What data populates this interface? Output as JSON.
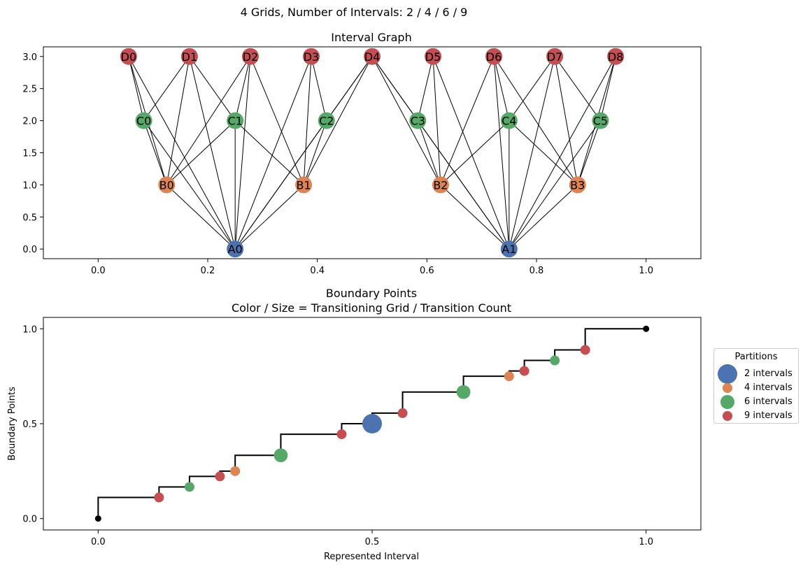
{
  "suptitle": "4 Grids, Number of Intervals: 2 / 4 / 6 / 9",
  "colors": {
    "blue": "#4c72b0",
    "orange": "#dd8452",
    "green": "#55a868",
    "red": "#c44e52",
    "edge": "#000000",
    "black": "#000000"
  },
  "chart_data": [
    {
      "type": "network",
      "title": "Interval Graph",
      "xlim": [
        -0.1,
        1.1
      ],
      "ylim": [
        -0.15,
        3.15
      ],
      "xticks": [
        0.0,
        0.2,
        0.4,
        0.6,
        0.8,
        1.0
      ],
      "xtick_labels": [
        "0.0",
        "0.2",
        "0.4",
        "0.6",
        "0.8",
        "1.0"
      ],
      "yticks": [
        0.0,
        0.5,
        1.0,
        1.5,
        2.0,
        2.5,
        3.0
      ],
      "ytick_labels": [
        "0.0",
        "0.5",
        "1.0",
        "1.5",
        "2.0",
        "2.5",
        "3.0"
      ],
      "nodes": [
        {
          "id": "A0",
          "x": 0.25,
          "y": 0,
          "color": "blue"
        },
        {
          "id": "A1",
          "x": 0.75,
          "y": 0,
          "color": "blue"
        },
        {
          "id": "B0",
          "x": 0.125,
          "y": 1,
          "color": "orange"
        },
        {
          "id": "B1",
          "x": 0.375,
          "y": 1,
          "color": "orange"
        },
        {
          "id": "B2",
          "x": 0.625,
          "y": 1,
          "color": "orange"
        },
        {
          "id": "B3",
          "x": 0.875,
          "y": 1,
          "color": "orange"
        },
        {
          "id": "C0",
          "x": 0.0833,
          "y": 2,
          "color": "green"
        },
        {
          "id": "C1",
          "x": 0.25,
          "y": 2,
          "color": "green"
        },
        {
          "id": "C2",
          "x": 0.4167,
          "y": 2,
          "color": "green"
        },
        {
          "id": "C3",
          "x": 0.5833,
          "y": 2,
          "color": "green"
        },
        {
          "id": "C4",
          "x": 0.75,
          "y": 2,
          "color": "green"
        },
        {
          "id": "C5",
          "x": 0.9167,
          "y": 2,
          "color": "green"
        },
        {
          "id": "D0",
          "x": 0.0556,
          "y": 3,
          "color": "red"
        },
        {
          "id": "D1",
          "x": 0.1667,
          "y": 3,
          "color": "red"
        },
        {
          "id": "D2",
          "x": 0.2778,
          "y": 3,
          "color": "red"
        },
        {
          "id": "D3",
          "x": 0.3889,
          "y": 3,
          "color": "red"
        },
        {
          "id": "D4",
          "x": 0.5,
          "y": 3,
          "color": "red"
        },
        {
          "id": "D5",
          "x": 0.6111,
          "y": 3,
          "color": "red"
        },
        {
          "id": "D6",
          "x": 0.7222,
          "y": 3,
          "color": "red"
        },
        {
          "id": "D7",
          "x": 0.8333,
          "y": 3,
          "color": "red"
        },
        {
          "id": "D8",
          "x": 0.9444,
          "y": 3,
          "color": "red"
        }
      ],
      "edges": [
        [
          "A0",
          "B0"
        ],
        [
          "A0",
          "B1"
        ],
        [
          "A0",
          "C0"
        ],
        [
          "A0",
          "C1"
        ],
        [
          "A0",
          "C2"
        ],
        [
          "A0",
          "D0"
        ],
        [
          "A0",
          "D1"
        ],
        [
          "A0",
          "D2"
        ],
        [
          "A0",
          "D3"
        ],
        [
          "A0",
          "D4"
        ],
        [
          "A1",
          "B2"
        ],
        [
          "A1",
          "B3"
        ],
        [
          "A1",
          "C3"
        ],
        [
          "A1",
          "C4"
        ],
        [
          "A1",
          "C5"
        ],
        [
          "A1",
          "D4"
        ],
        [
          "A1",
          "D5"
        ],
        [
          "A1",
          "D6"
        ],
        [
          "A1",
          "D7"
        ],
        [
          "A1",
          "D8"
        ],
        [
          "B0",
          "C0"
        ],
        [
          "B0",
          "C1"
        ],
        [
          "B0",
          "D0"
        ],
        [
          "B0",
          "D1"
        ],
        [
          "B0",
          "D2"
        ],
        [
          "B1",
          "C1"
        ],
        [
          "B1",
          "C2"
        ],
        [
          "B1",
          "D2"
        ],
        [
          "B1",
          "D3"
        ],
        [
          "B1",
          "D4"
        ],
        [
          "B2",
          "C3"
        ],
        [
          "B2",
          "C4"
        ],
        [
          "B2",
          "D4"
        ],
        [
          "B2",
          "D5"
        ],
        [
          "B2",
          "D6"
        ],
        [
          "B3",
          "C4"
        ],
        [
          "B3",
          "C5"
        ],
        [
          "B3",
          "D6"
        ],
        [
          "B3",
          "D7"
        ],
        [
          "B3",
          "D8"
        ],
        [
          "C0",
          "D0"
        ],
        [
          "C0",
          "D1"
        ],
        [
          "C1",
          "D1"
        ],
        [
          "C1",
          "D2"
        ],
        [
          "C2",
          "D3"
        ],
        [
          "C2",
          "D4"
        ],
        [
          "C3",
          "D4"
        ],
        [
          "C3",
          "D5"
        ],
        [
          "C4",
          "D6"
        ],
        [
          "C4",
          "D7"
        ],
        [
          "C5",
          "D7"
        ],
        [
          "C5",
          "D8"
        ]
      ]
    },
    {
      "type": "scatter",
      "title": "Boundary Points",
      "subtitle": "Color / Size = Transitioning Grid / Transition Count",
      "xlabel": "Represented Interval",
      "ylabel": "Boundary Points",
      "xlim": [
        -0.1,
        1.1
      ],
      "ylim": [
        -0.06,
        1.06
      ],
      "xticks": [
        0.0,
        0.5,
        1.0
      ],
      "xtick_labels": [
        "0.0",
        "0.5",
        "1.0"
      ],
      "yticks": [
        0.0,
        0.5,
        1.0
      ],
      "ytick_labels": [
        "0.0",
        "0.5",
        "1.0"
      ],
      "step_line": [
        [
          0.0,
          0.0
        ],
        [
          0.0,
          0.1111
        ],
        [
          0.1111,
          0.1111
        ],
        [
          0.1111,
          0.1667
        ],
        [
          0.1667,
          0.1667
        ],
        [
          0.1667,
          0.2222
        ],
        [
          0.2222,
          0.2222
        ],
        [
          0.2222,
          0.25
        ],
        [
          0.25,
          0.25
        ],
        [
          0.25,
          0.3333
        ],
        [
          0.3333,
          0.3333
        ],
        [
          0.3333,
          0.4444
        ],
        [
          0.4444,
          0.4444
        ],
        [
          0.4444,
          0.5
        ],
        [
          0.5,
          0.5
        ],
        [
          0.5,
          0.5556
        ],
        [
          0.5556,
          0.5556
        ],
        [
          0.5556,
          0.6667
        ],
        [
          0.6667,
          0.6667
        ],
        [
          0.6667,
          0.75
        ],
        [
          0.75,
          0.75
        ],
        [
          0.75,
          0.7778
        ],
        [
          0.7778,
          0.7778
        ],
        [
          0.7778,
          0.8333
        ],
        [
          0.8333,
          0.8333
        ],
        [
          0.8333,
          0.8889
        ],
        [
          0.8889,
          0.8889
        ],
        [
          0.8889,
          1.0
        ],
        [
          1.0,
          1.0
        ]
      ],
      "endpoints": [
        {
          "x": 0.0,
          "y": 0.0
        },
        {
          "x": 1.0,
          "y": 1.0
        }
      ],
      "points": [
        {
          "x": 0.1111,
          "y": 0.1111,
          "series": "9 intervals",
          "count": 1
        },
        {
          "x": 0.1667,
          "y": 0.1667,
          "series": "6 intervals",
          "count": 1
        },
        {
          "x": 0.2222,
          "y": 0.2222,
          "series": "9 intervals",
          "count": 1
        },
        {
          "x": 0.25,
          "y": 0.25,
          "series": "4 intervals",
          "count": 1
        },
        {
          "x": 0.3333,
          "y": 0.3333,
          "series": "6 intervals",
          "count": 2
        },
        {
          "x": 0.4444,
          "y": 0.4444,
          "series": "9 intervals",
          "count": 1
        },
        {
          "x": 0.5,
          "y": 0.5,
          "series": "2 intervals",
          "count": 4
        },
        {
          "x": 0.5556,
          "y": 0.5556,
          "series": "9 intervals",
          "count": 1
        },
        {
          "x": 0.6667,
          "y": 0.6667,
          "series": "6 intervals",
          "count": 2
        },
        {
          "x": 0.75,
          "y": 0.75,
          "series": "4 intervals",
          "count": 1
        },
        {
          "x": 0.7778,
          "y": 0.7778,
          "series": "9 intervals",
          "count": 1
        },
        {
          "x": 0.8333,
          "y": 0.8333,
          "series": "6 intervals",
          "count": 1
        },
        {
          "x": 0.8889,
          "y": 0.8889,
          "series": "9 intervals",
          "count": 1
        }
      ],
      "legend": {
        "title": "Partitions",
        "placement": "outside-right",
        "items": [
          {
            "label": "2 intervals",
            "color": "blue",
            "count": 4
          },
          {
            "label": "4 intervals",
            "color": "orange",
            "count": 1
          },
          {
            "label": "6 intervals",
            "color": "green",
            "count": 2
          },
          {
            "label": "9 intervals",
            "color": "red",
            "count": 1
          }
        ]
      }
    }
  ]
}
